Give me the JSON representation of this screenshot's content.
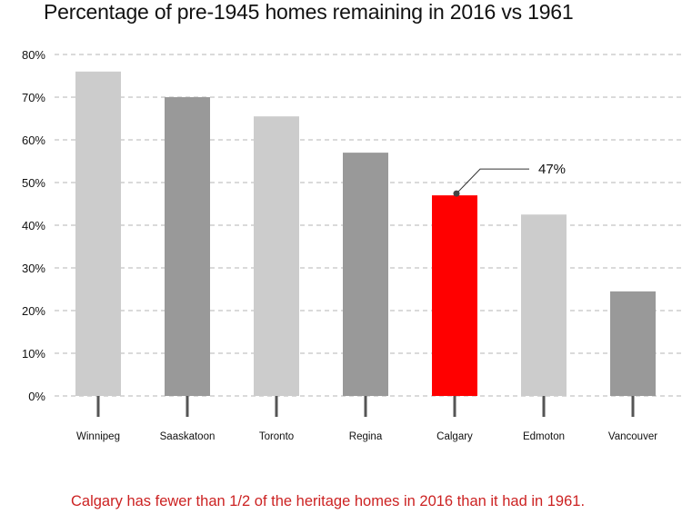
{
  "chart_data": {
    "type": "bar",
    "title": "Percentage of pre-1945 homes remaining in 2016 vs 1961",
    "categories": [
      "Winnipeg",
      "Saaskatoon",
      "Toronto",
      "Regina",
      "Calgary",
      "Edmoton",
      "Vancouver"
    ],
    "values": [
      76,
      70,
      65.5,
      57,
      47,
      42.5,
      24.5
    ],
    "bar_colors": [
      "#cccccc",
      "#999999",
      "#cccccc",
      "#999999",
      "#ff0000",
      "#cccccc",
      "#999999"
    ],
    "ylim": [
      0,
      80
    ],
    "yticks": [
      0,
      10,
      20,
      30,
      40,
      50,
      60,
      70,
      80
    ],
    "ytick_labels": [
      "0%",
      "10%",
      "20%",
      "30%",
      "40%",
      "50%",
      "60%",
      "70%",
      "80%"
    ],
    "grid": true,
    "xlabel": "",
    "ylabel": "",
    "annotation": {
      "category": "Calgary",
      "text": "47%"
    }
  },
  "footnote": {
    "text": "Calgary has fewer than 1/2 of the heritage homes in 2016 than it had in 1961.",
    "color": "#cc2222"
  }
}
